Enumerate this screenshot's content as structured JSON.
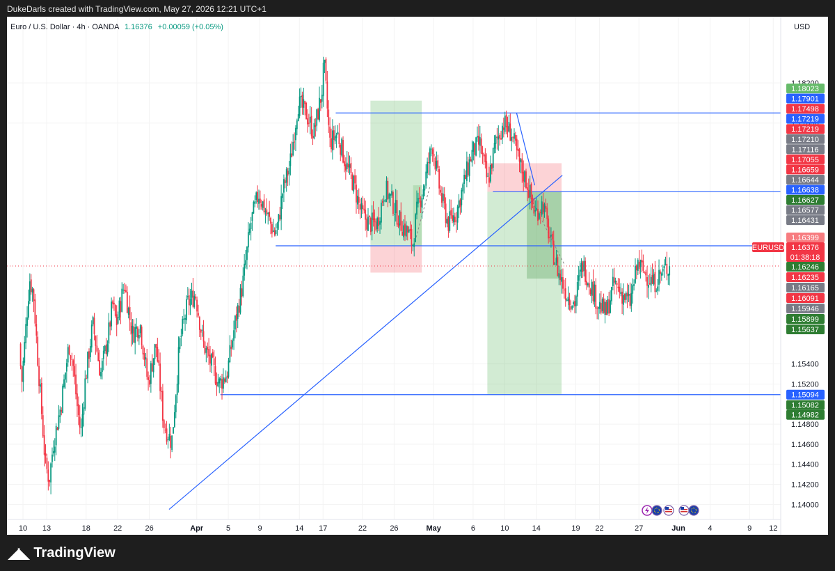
{
  "header": {
    "credit": "DukeDarls created with TradingView.com, May 27, 2026 12:21 UTC+1"
  },
  "footer": {
    "brand": "TradingView",
    "logo_icon": "tradingview-logo-icon"
  },
  "chart_data": {
    "type": "candlestick",
    "symbol_title": "Euro / U.S. Dollar · 4h · OANDA",
    "last_price": "1.16376",
    "change": "+0.00059 (+0.05%)",
    "currency": "USD",
    "symbol_tag": "EURUSD",
    "countdown": "01:38:18",
    "ylim": [
      1.1385,
      1.1886
    ],
    "y_ticks": [
      "1.18200",
      "1.17800",
      "1.15400",
      "1.15200",
      "1.14800",
      "1.14600",
      "1.14400",
      "1.14200",
      "1.14000"
    ],
    "x_ticks": [
      {
        "label": "10",
        "day": 0
      },
      {
        "label": "13",
        "day": 3
      },
      {
        "label": "18",
        "day": 8
      },
      {
        "label": "22",
        "day": 12
      },
      {
        "label": "26",
        "day": 16
      },
      {
        "label": "Apr",
        "day": 22,
        "bold": true
      },
      {
        "label": "5",
        "day": 26
      },
      {
        "label": "9",
        "day": 30
      },
      {
        "label": "14",
        "day": 35
      },
      {
        "label": "17",
        "day": 38
      },
      {
        "label": "22",
        "day": 43
      },
      {
        "label": "26",
        "day": 47
      },
      {
        "label": "May",
        "day": 52,
        "bold": true
      },
      {
        "label": "6",
        "day": 57
      },
      {
        "label": "10",
        "day": 61
      },
      {
        "label": "14",
        "day": 65
      },
      {
        "label": "19",
        "day": 70
      },
      {
        "label": "22",
        "day": 73
      },
      {
        "label": "27",
        "day": 78
      },
      {
        "label": "Jun",
        "day": 83,
        "bold": true
      },
      {
        "label": "4",
        "day": 87
      },
      {
        "label": "9",
        "day": 92
      },
      {
        "label": "12",
        "day": 95
      }
    ],
    "price_path": [
      [
        -0.3,
        1.156
      ],
      [
        0,
        1.152
      ],
      [
        1,
        1.1625
      ],
      [
        1.5,
        1.161
      ],
      [
        2,
        1.155
      ],
      [
        3,
        1.144
      ],
      [
        3.5,
        1.1425
      ],
      [
        4,
        1.146
      ],
      [
        5,
        1.15
      ],
      [
        6,
        1.156
      ],
      [
        6.5,
        1.154
      ],
      [
        7,
        1.15
      ],
      [
        7.5,
        1.147
      ],
      [
        8,
        1.152
      ],
      [
        9,
        1.158
      ],
      [
        10,
        1.153
      ],
      [
        11,
        1.157
      ],
      [
        11.5,
        1.16
      ],
      [
        12,
        1.158
      ],
      [
        13,
        1.162
      ],
      [
        14,
        1.157
      ],
      [
        15,
        1.158
      ],
      [
        16,
        1.152
      ],
      [
        17,
        1.156
      ],
      [
        18,
        1.148
      ],
      [
        19,
        1.1462
      ],
      [
        20,
        1.156
      ],
      [
        21,
        1.16
      ],
      [
        22,
        1.161
      ],
      [
        23,
        1.156
      ],
      [
        24,
        1.154
      ],
      [
        25,
        1.152
      ],
      [
        26,
        1.153
      ],
      [
        27,
        1.158
      ],
      [
        28,
        1.162
      ],
      [
        29,
        1.168
      ],
      [
        30,
        1.171
      ],
      [
        31,
        1.169
      ],
      [
        32,
        1.167
      ],
      [
        32.5,
        1.168
      ],
      [
        33,
        1.171
      ],
      [
        34,
        1.174
      ],
      [
        35,
        1.18
      ],
      [
        36,
        1.179
      ],
      [
        37,
        1.177
      ],
      [
        38,
        1.181
      ],
      [
        38.3,
        1.184
      ],
      [
        39,
        1.176
      ],
      [
        40,
        1.177
      ],
      [
        41,
        1.174
      ],
      [
        42,
        1.172
      ],
      [
        43,
        1.169
      ],
      [
        44,
        1.168
      ],
      [
        45,
        1.168
      ],
      [
        46,
        1.1715
      ],
      [
        47,
        1.17
      ],
      [
        48,
        1.168
      ],
      [
        49,
        1.167
      ],
      [
        49.5,
        1.1658
      ],
      [
        50,
        1.169
      ],
      [
        51,
        1.172
      ],
      [
        52,
        1.176
      ],
      [
        53,
        1.171
      ],
      [
        54,
        1.168
      ],
      [
        55,
        1.169
      ],
      [
        56,
        1.172
      ],
      [
        57,
        1.175
      ],
      [
        58,
        1.176
      ],
      [
        59,
        1.172
      ],
      [
        60,
        1.176
      ],
      [
        61,
        1.178
      ],
      [
        62,
        1.177
      ],
      [
        63,
        1.174
      ],
      [
        64,
        1.172
      ],
      [
        65,
        1.169
      ],
      [
        66,
        1.17
      ],
      [
        67,
        1.166
      ],
      [
        68,
        1.163
      ],
      [
        69,
        1.161
      ],
      [
        70,
        1.16
      ],
      [
        71,
        1.164
      ],
      [
        72,
        1.162
      ],
      [
        73,
        1.16
      ],
      [
        74,
        1.159
      ],
      [
        75,
        1.162
      ],
      [
        76,
        1.161
      ],
      [
        77,
        1.16
      ],
      [
        78,
        1.164
      ],
      [
        79,
        1.163
      ],
      [
        80,
        1.162
      ],
      [
        81,
        1.163
      ],
      [
        82,
        1.1638
      ]
    ],
    "horizontal_levels": [
      1.17901,
      1.17116,
      1.16577,
      1.15094
    ],
    "trendlines": [
      {
        "from_day": 18.5,
        "from_price": 1.1395,
        "to_day": 68.3,
        "to_price": 1.1728
      },
      {
        "from_day": 62.5,
        "from_price": 1.17901,
        "to_day": 64.8,
        "to_price": 1.1718
      }
    ],
    "current_price_line": 1.16376,
    "positions": [
      {
        "kind": "long",
        "left_day": 44.0,
        "right_day": 50.5,
        "entry": 1.16577,
        "target": 1.18023,
        "stop": 1.1631
      },
      {
        "kind": "short",
        "left_day": 58.8,
        "right_day": 68.2,
        "entry": 1.17116,
        "target": 1.15094,
        "stop": 1.174
      }
    ],
    "price_labels": [
      {
        "value": "1.18023",
        "color": "#66bb6a"
      },
      {
        "value": "1.17901",
        "color": "#2962ff"
      },
      {
        "value": "1.17498",
        "color": "#f23645"
      },
      {
        "value": "1.17219",
        "color": "#2962ff"
      },
      {
        "value": "1.17219",
        "color": "#f23645"
      },
      {
        "value": "1.17210",
        "color": "#787b86"
      },
      {
        "value": "1.17116",
        "color": "#787b86"
      },
      {
        "value": "1.17055",
        "color": "#f23645"
      },
      {
        "value": "1.16659",
        "color": "#f23645"
      },
      {
        "value": "1.16644",
        "color": "#787b86"
      },
      {
        "value": "1.16638",
        "color": "#2962ff"
      },
      {
        "value": "1.16627",
        "color": "#2e7d32"
      },
      {
        "value": "1.16577",
        "color": "#787b86"
      },
      {
        "value": "1.16431",
        "color": "#787b86"
      },
      {
        "value": "1.16399",
        "color": "#f77c80"
      },
      {
        "value": "1.16376",
        "color": "#f23645"
      },
      {
        "value": "1.16246",
        "color": "#2e7d32"
      },
      {
        "value": "1.16235",
        "color": "#f23645"
      },
      {
        "value": "1.16165",
        "color": "#787b86"
      },
      {
        "value": "1.16091",
        "color": "#f23645"
      },
      {
        "value": "1.15946",
        "color": "#787b86"
      },
      {
        "value": "1.15899",
        "color": "#2e7d32"
      },
      {
        "value": "1.15637",
        "color": "#2e7d32"
      },
      {
        "value": "1.15094",
        "color": "#2962ff"
      },
      {
        "value": "1.15082",
        "color": "#2e7d32"
      },
      {
        "value": "1.14982",
        "color": "#2e7d32"
      }
    ],
    "event_icons": [
      "lightning-icon",
      "eu-flag-icon",
      "us-flag-icon",
      "us-flag-icon",
      "eu-flag-icon"
    ],
    "colors": {
      "up": "#089981",
      "down": "#f23645",
      "drawing": "#2962ff",
      "grid": "#f3f3f3",
      "text": "#131722"
    }
  }
}
